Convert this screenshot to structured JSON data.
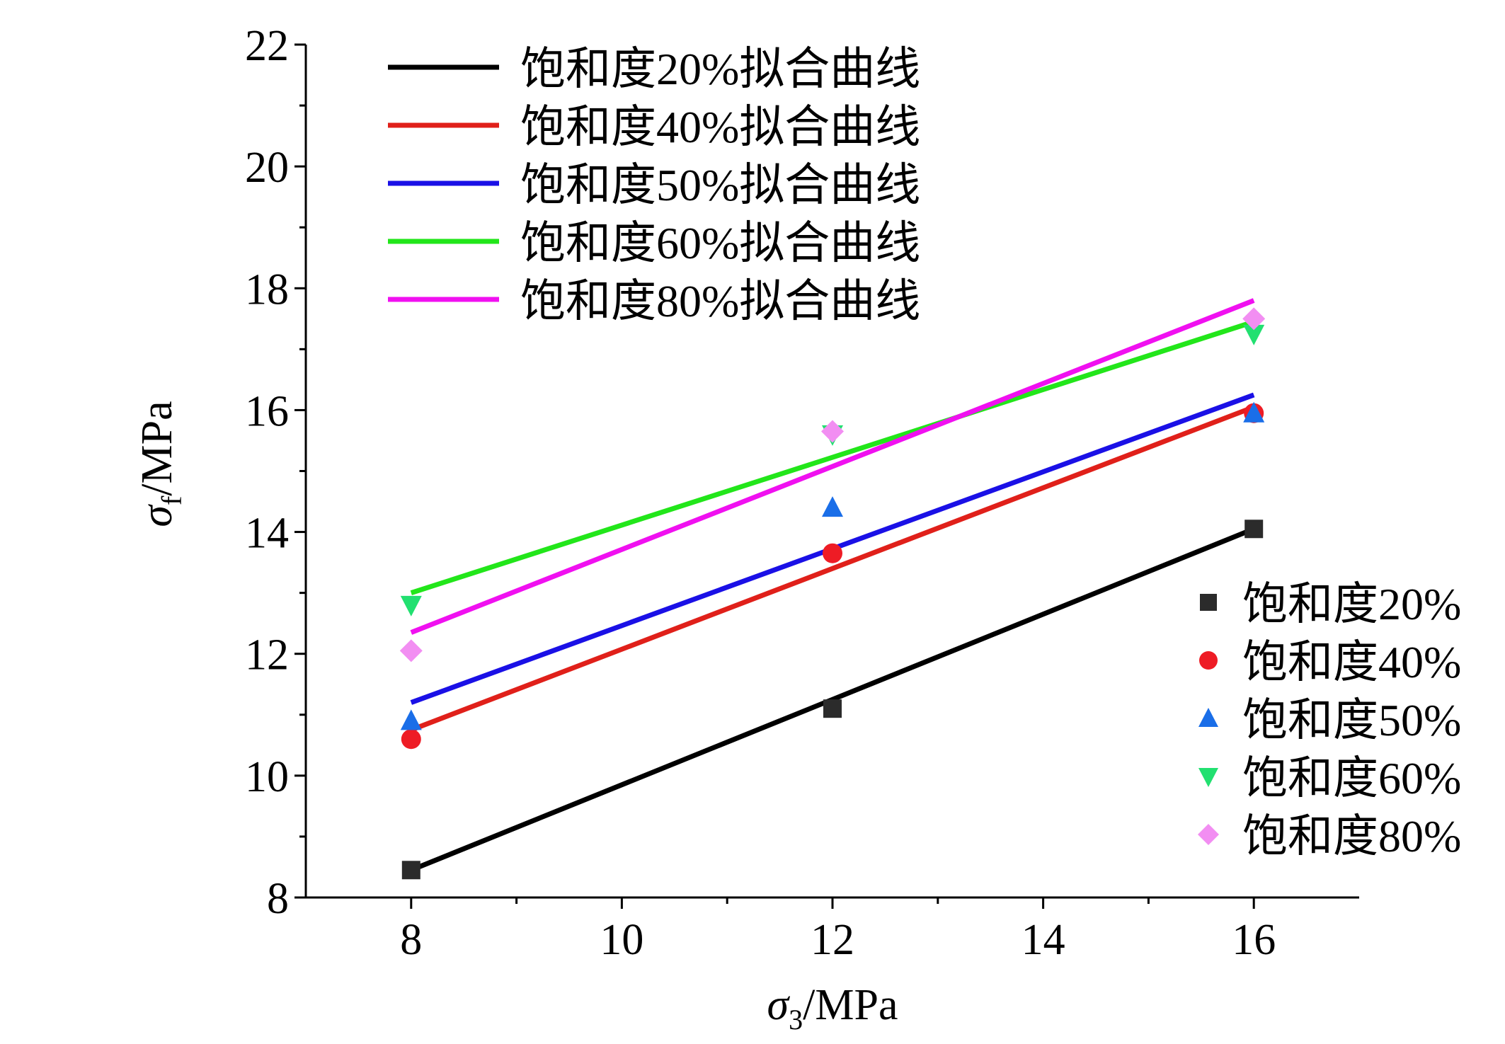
{
  "chart_data": {
    "type": "scatter",
    "title": "",
    "xlabel": {
      "symbol": "σ",
      "sub": "3",
      "unit": "/MPa"
    },
    "ylabel": {
      "symbol": "σ",
      "sub": "f",
      "unit": "/MPa"
    },
    "xlim": [
      7,
      17
    ],
    "ylim": [
      8,
      22
    ],
    "xticks": [
      8,
      10,
      12,
      14,
      16
    ],
    "yticks": [
      8,
      10,
      12,
      14,
      16,
      18,
      20,
      22
    ],
    "grid": false,
    "scatter_series": [
      {
        "name": "饱和度20%",
        "marker": "square",
        "color": "#2b2b2b",
        "x": [
          8,
          12,
          16
        ],
        "y": [
          8.45,
          11.1,
          14.05
        ]
      },
      {
        "name": "饱和度40%",
        "marker": "circle",
        "color": "#ee1c25",
        "x": [
          8,
          12,
          16
        ],
        "y": [
          10.6,
          13.65,
          15.95
        ]
      },
      {
        "name": "饱和度50%",
        "marker": "triangle-up",
        "color": "#1a6ee8",
        "x": [
          8,
          12,
          16
        ],
        "y": [
          10.9,
          14.4,
          15.95
        ]
      },
      {
        "name": "饱和度60%",
        "marker": "triangle-down",
        "color": "#22e070",
        "x": [
          8,
          12,
          16
        ],
        "y": [
          12.8,
          15.6,
          17.25
        ]
      },
      {
        "name": "饱和度80%",
        "marker": "diamond",
        "color": "#f28ef2",
        "x": [
          8,
          12,
          16
        ],
        "y": [
          12.05,
          15.65,
          17.5
        ]
      }
    ],
    "fit_lines": [
      {
        "name": "饱和度20%拟合曲线",
        "color": "#000000",
        "x": [
          8,
          16
        ],
        "y": [
          8.45,
          14.05
        ]
      },
      {
        "name": "饱和度40%拟合曲线",
        "color": "#e0201a",
        "x": [
          8,
          16
        ],
        "y": [
          10.75,
          16.05
        ]
      },
      {
        "name": "饱和度50%拟合曲线",
        "color": "#1a10e6",
        "x": [
          8,
          16
        ],
        "y": [
          11.2,
          16.25
        ]
      },
      {
        "name": "饱和度60%拟合曲线",
        "color": "#22e61a",
        "x": [
          8,
          16
        ],
        "y": [
          13.0,
          17.45
        ]
      },
      {
        "name": "饱和度80%拟合曲线",
        "color": "#f010f0",
        "x": [
          8,
          16
        ],
        "y": [
          12.35,
          17.8
        ]
      }
    ],
    "legend_fits_position": "top-left",
    "legend_points_position": "bottom-right"
  }
}
